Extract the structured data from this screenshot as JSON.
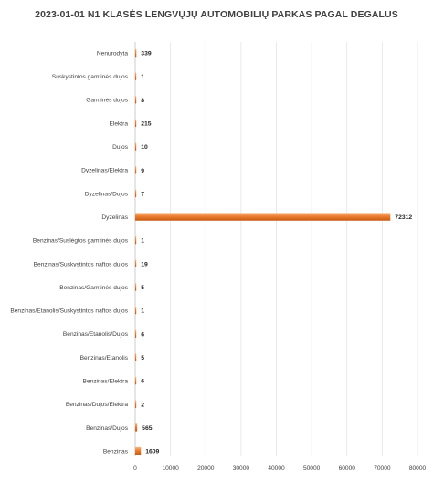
{
  "chart_data": {
    "type": "bar",
    "orientation": "horizontal",
    "title": "2023-01-01 N1 KLASĖS LENGVŲJŲ AUTOMOBILIŲ PARKAS PAGAL DEGALUS",
    "categories": [
      "Nenurodyta",
      "Suskystintos gamtinės dujos",
      "Gamtinės dujos",
      "Elektra",
      "Dujos",
      "Dyzelinas/Elektra",
      "Dyzelinas/Dujos",
      "Dyzelinas",
      "Benzinas/Suslėgtos gamtinės dujos",
      "Benzinas/Suskystintos naftos dujos",
      "Benzinas/Gamtinės dujos",
      "Benzinas/Etanolis/Suskystintos naftos dujos",
      "Benzinas/Etanolis/Dujos",
      "Benzinas/Etanolis",
      "Benzinas/Elektra",
      "Benzinas/Dujos/Elektra",
      "Benzinas/Dujos",
      "Benzinas"
    ],
    "values": [
      339,
      1,
      8,
      215,
      10,
      9,
      7,
      72312,
      1,
      19,
      5,
      1,
      6,
      5,
      6,
      2,
      565,
      1609
    ],
    "value_labels": [
      "339",
      "1",
      "8",
      "215",
      "10",
      "9",
      "7",
      "72312",
      "1",
      "19",
      "5",
      "1",
      "6",
      "5",
      "6",
      "2",
      "565",
      "1609"
    ],
    "xlim": [
      0,
      80000
    ],
    "xticks": [
      0,
      10000,
      20000,
      30000,
      40000,
      50000,
      60000,
      70000,
      80000
    ],
    "xtick_labels": [
      "0",
      "10000",
      "20000",
      "30000",
      "40000",
      "50000",
      "60000",
      "70000",
      "80000"
    ],
    "xlabel": "",
    "ylabel": "",
    "grid": "vertical",
    "legend": "none",
    "bar_color": "#ed7d31",
    "bar_highlight": "#f6b782",
    "bar_shadow": "#c55a11"
  }
}
